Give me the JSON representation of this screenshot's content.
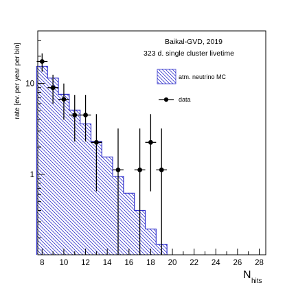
{
  "chart_data": {
    "type": "histogram",
    "title": "Baikal-GVD, 2019",
    "subtitle": "323 d. single cluster livetime",
    "xlabel_main": "N",
    "xlabel_sub": "hits",
    "ylabel": "rate [ev. per year per bin]",
    "xlim": [
      7.6,
      28.6
    ],
    "ylim": [
      0.13,
      38
    ],
    "y_scale": "log",
    "x_ticks": [
      8,
      10,
      12,
      14,
      16,
      18,
      20,
      22,
      24,
      26,
      28
    ],
    "y_tick_labels": [
      {
        "value": 1,
        "label": "1"
      },
      {
        "value": 10,
        "label": "10"
      }
    ],
    "legend_position": "top-right",
    "series": [
      {
        "name": "atm. neutrino MC",
        "kind": "hatched-step",
        "color": "#3333cc",
        "bin_edges": [
          7.5,
          8.5,
          9.5,
          10.5,
          11.5,
          12.5,
          13.5,
          14.5,
          15.5,
          16.5,
          17.5,
          18.5,
          19.5
        ],
        "values": [
          15.5,
          11.5,
          7.6,
          5.1,
          3.6,
          2.3,
          1.55,
          0.95,
          0.62,
          0.4,
          0.25,
          0.17
        ]
      },
      {
        "name": "data",
        "kind": "points-with-errors",
        "color": "#000000",
        "points": [
          {
            "x": 8,
            "y": 17.5,
            "ylo": 13.5,
            "yhi": 21.5
          },
          {
            "x": 9,
            "y": 9.0,
            "ylo": 6.0,
            "yhi": 12.5
          },
          {
            "x": 10,
            "y": 6.7,
            "ylo": 4.0,
            "yhi": 10.0
          },
          {
            "x": 11,
            "y": 4.5,
            "ylo": 2.3,
            "yhi": 7.5
          },
          {
            "x": 12,
            "y": 4.5,
            "ylo": 2.3,
            "yhi": 7.5
          },
          {
            "x": 13,
            "y": 2.25,
            "ylo": 0.65,
            "yhi": 4.6
          },
          {
            "x": 15,
            "y": 1.12,
            "ylo": 0.13,
            "yhi": 3.2
          },
          {
            "x": 17,
            "y": 1.12,
            "ylo": 0.13,
            "yhi": 3.2
          },
          {
            "x": 18,
            "y": 2.25,
            "ylo": 0.65,
            "yhi": 4.6
          },
          {
            "x": 19,
            "y": 1.12,
            "ylo": 0.13,
            "yhi": 3.2
          }
        ]
      }
    ]
  }
}
